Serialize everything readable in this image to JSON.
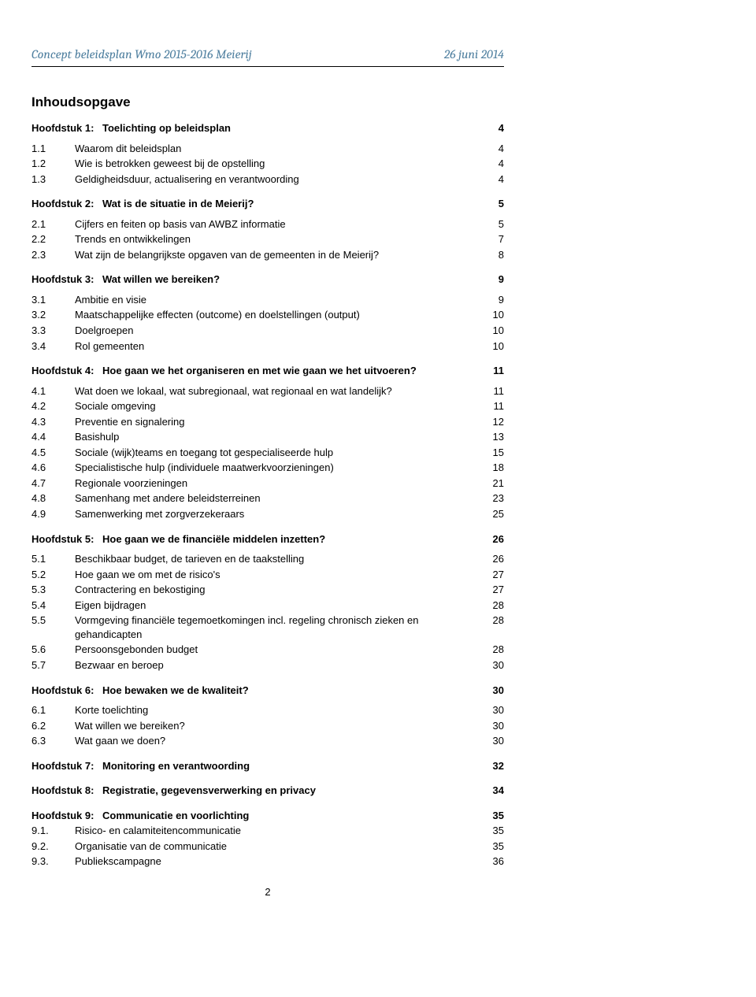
{
  "header": {
    "left": "Concept beleidsplan Wmo 2015-2016 Meierij",
    "right": "26 juni 2014"
  },
  "title": "Inhoudsopgave",
  "pageNumber": "2",
  "toc": [
    {
      "type": "chapter",
      "num": "Hoofdstuk 1:",
      "label": "Toelichting op beleidsplan",
      "page": "4"
    },
    {
      "type": "section",
      "num": "1.1",
      "label": "Waarom dit beleidsplan",
      "page": "4"
    },
    {
      "type": "section",
      "num": "1.2",
      "label": "Wie is betrokken geweest bij de opstelling",
      "page": "4"
    },
    {
      "type": "section",
      "num": "1.3",
      "label": "Geldigheidsduur, actualisering en verantwoording",
      "page": "4"
    },
    {
      "type": "chapter",
      "num": "Hoofdstuk 2:",
      "label": "Wat is de situatie in de Meierij?",
      "page": "5"
    },
    {
      "type": "section",
      "num": "2.1",
      "label": "Cijfers en feiten op basis van AWBZ informatie",
      "page": "5"
    },
    {
      "type": "section",
      "num": "2.2",
      "label": "Trends en ontwikkelingen",
      "page": "7"
    },
    {
      "type": "section",
      "num": "2.3",
      "label": "Wat zijn de belangrijkste opgaven van de gemeenten in de Meierij?",
      "page": "8"
    },
    {
      "type": "chapter",
      "num": "Hoofdstuk 3:",
      "label": "Wat willen we bereiken?",
      "page": "9"
    },
    {
      "type": "section",
      "num": "3.1",
      "label": "Ambitie en visie",
      "page": "9"
    },
    {
      "type": "section",
      "num": "3.2",
      "label": "Maatschappelijke effecten (outcome) en doelstellingen (output)",
      "page": "10"
    },
    {
      "type": "section",
      "num": "3.3",
      "label": "Doelgroepen",
      "page": "10"
    },
    {
      "type": "section",
      "num": "3.4",
      "label": "Rol gemeenten",
      "page": "10"
    },
    {
      "type": "chapter",
      "num": "Hoofdstuk 4:",
      "label": "Hoe gaan we het organiseren en met wie gaan we het uitvoeren?",
      "page": "11"
    },
    {
      "type": "section",
      "num": "4.1",
      "label": "Wat doen we lokaal, wat subregionaal, wat regionaal en wat landelijk?",
      "page": "11"
    },
    {
      "type": "section",
      "num": "4.2",
      "label": "Sociale omgeving",
      "page": "11"
    },
    {
      "type": "section",
      "num": "4.3",
      "label": "Preventie en signalering",
      "page": "12"
    },
    {
      "type": "section",
      "num": "4.4",
      "label": "Basishulp",
      "page": "13"
    },
    {
      "type": "section",
      "num": "4.5",
      "label": "Sociale (wijk)teams en toegang tot gespecialiseerde hulp",
      "page": "15"
    },
    {
      "type": "section",
      "num": "4.6",
      "label": "Specialistische hulp (individuele maatwerkvoorzieningen)",
      "page": "18"
    },
    {
      "type": "section",
      "num": "4.7",
      "label": "Regionale voorzieningen",
      "page": "21"
    },
    {
      "type": "section",
      "num": "4.8",
      "label": "Samenhang met andere beleidsterreinen",
      "page": "23"
    },
    {
      "type": "section",
      "num": "4.9",
      "label": "Samenwerking met zorgverzekeraars",
      "page": "25"
    },
    {
      "type": "chapter",
      "num": "Hoofdstuk 5:",
      "label": "Hoe gaan we de financiële middelen inzetten?",
      "page": "26"
    },
    {
      "type": "section",
      "num": "5.1",
      "label": "Beschikbaar budget, de tarieven en de taakstelling",
      "page": "26"
    },
    {
      "type": "section",
      "num": "5.2",
      "label": "Hoe gaan we om met de risico's",
      "page": "27"
    },
    {
      "type": "section",
      "num": "5.3",
      "label": "Contractering en bekostiging",
      "page": "27"
    },
    {
      "type": "section",
      "num": "5.4",
      "label": "Eigen bijdragen",
      "page": "28"
    },
    {
      "type": "section",
      "num": "5.5",
      "label": "Vormgeving financiële tegemoetkomingen incl. regeling chronisch zieken en gehandicapten",
      "page": "28"
    },
    {
      "type": "section",
      "num": "5.6",
      "label": "Persoonsgebonden budget",
      "page": "28"
    },
    {
      "type": "section",
      "num": "5.7",
      "label": "Bezwaar en beroep",
      "page": "30"
    },
    {
      "type": "chapter",
      "num": "Hoofdstuk 6:",
      "label": "Hoe bewaken we de kwaliteit?",
      "page": "30"
    },
    {
      "type": "section",
      "num": "6.1",
      "label": "Korte toelichting",
      "page": "30"
    },
    {
      "type": "section",
      "num": "6.2",
      "label": "Wat willen we bereiken?",
      "page": "30"
    },
    {
      "type": "section",
      "num": "6.3",
      "label": "Wat gaan we doen?",
      "page": "30"
    },
    {
      "type": "chapter",
      "num": "Hoofdstuk 7:",
      "label": "Monitoring en verantwoording",
      "page": "32"
    },
    {
      "type": "chapter",
      "num": "Hoofdstuk 8:",
      "label": "Registratie, gegevensverwerking en privacy",
      "page": "34"
    },
    {
      "type": "chapter-tight",
      "num": "Hoofdstuk 9:",
      "label": "Communicatie en voorlichting",
      "page": "35"
    },
    {
      "type": "section",
      "num": "9.1.",
      "label": "Risico- en calamiteitencommunicatie",
      "page": "35"
    },
    {
      "type": "section",
      "num": "9.2.",
      "label": "Organisatie van de communicatie",
      "page": "35"
    },
    {
      "type": "section",
      "num": "9.3.",
      "label": "Publiekscampagne",
      "page": "36"
    }
  ]
}
